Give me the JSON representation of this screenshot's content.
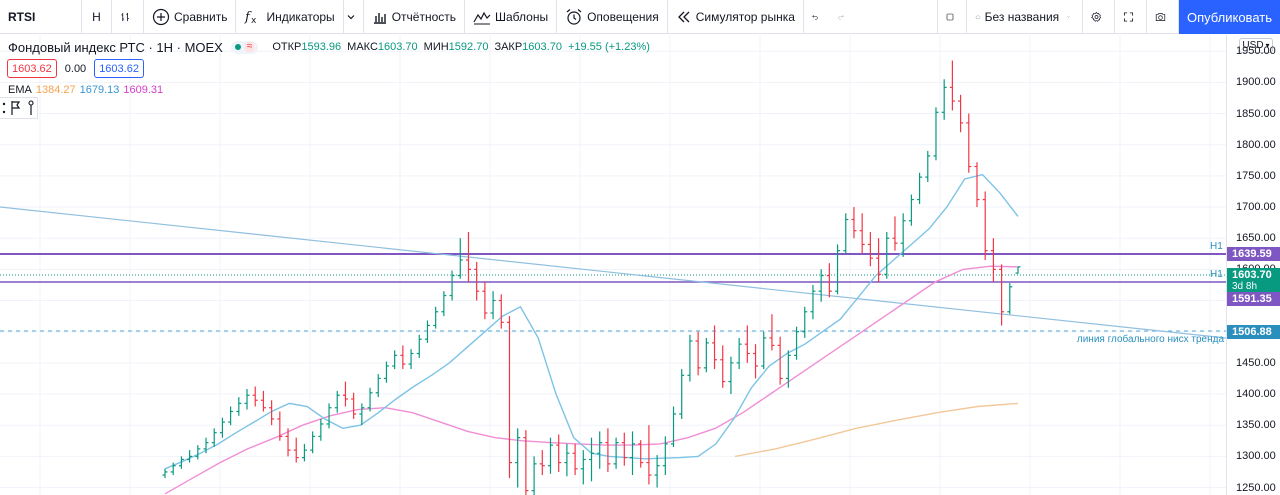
{
  "toolbar": {
    "symbol": "RTSI",
    "interval": "H",
    "compare": "Сравнить",
    "indicators": "Индикаторы",
    "reports": "Отчётность",
    "templates": "Шаблоны",
    "alerts": "Оповещения",
    "simulator": "Симулятор рынка",
    "layout_name": "Без названия",
    "publish": "Опубликовать"
  },
  "legend": {
    "title": "Фондовый индекс РТС · 1Н · MOEX",
    "open_label": "ОТКР",
    "open": "1593.96",
    "high_label": "МАКС",
    "high": "1603.70",
    "low_label": "МИН",
    "low": "1592.70",
    "close_label": "ЗАКР",
    "close": "1603.70",
    "change": "+19.55 (+1.23%)",
    "sell_price": "1603.62",
    "spread": "0.00",
    "buy_price": "1603.62",
    "ema_label": "EMA",
    "ema_values": [
      "1384.27",
      "1679.13",
      "1609.31"
    ]
  },
  "price_axis": {
    "currency": "USD",
    "ticks": [
      "1950.00",
      "1900.00",
      "1850.00",
      "1800.00",
      "1750.00",
      "1700.00",
      "1650.00",
      "1600.00",
      "1550.00",
      "1500.00",
      "1450.00",
      "1400.00",
      "1350.00",
      "1300.00",
      "1250.00"
    ],
    "range": [
      1238,
      1976
    ],
    "h1_upper": {
      "label": "H1",
      "value": "1639.59"
    },
    "h1_lower": {
      "label": "H1",
      "value": "1591.35"
    },
    "last_price": "1603.70",
    "countdown": "3d 8h",
    "dashed_level": "1506.88"
  },
  "annotations": {
    "trendline_label": "линия глобального нисх тренда"
  },
  "colors": {
    "up": "#089981",
    "down": "#f23645",
    "level_lines": "#7e57c2",
    "trendline": "#90bfe0",
    "accent": "#2962ff"
  },
  "chart_data": {
    "type": "ohlc",
    "bars": [
      [
        1270,
        1280,
        1265,
        1275
      ],
      [
        1275,
        1290,
        1270,
        1285
      ],
      [
        1285,
        1300,
        1280,
        1295
      ],
      [
        1295,
        1310,
        1290,
        1300
      ],
      [
        1300,
        1318,
        1295,
        1312
      ],
      [
        1312,
        1330,
        1305,
        1322
      ],
      [
        1322,
        1345,
        1315,
        1338
      ],
      [
        1338,
        1362,
        1330,
        1355
      ],
      [
        1355,
        1380,
        1350,
        1372
      ],
      [
        1372,
        1395,
        1365,
        1385
      ],
      [
        1385,
        1408,
        1375,
        1398
      ],
      [
        1398,
        1412,
        1380,
        1390
      ],
      [
        1390,
        1405,
        1372,
        1378
      ],
      [
        1378,
        1390,
        1350,
        1360
      ],
      [
        1360,
        1372,
        1325,
        1332
      ],
      [
        1332,
        1345,
        1300,
        1310
      ],
      [
        1310,
        1330,
        1290,
        1298
      ],
      [
        1298,
        1320,
        1292,
        1310
      ],
      [
        1310,
        1340,
        1305,
        1332
      ],
      [
        1332,
        1360,
        1325,
        1352
      ],
      [
        1352,
        1385,
        1345,
        1378
      ],
      [
        1378,
        1405,
        1370,
        1398
      ],
      [
        1398,
        1420,
        1380,
        1392
      ],
      [
        1392,
        1402,
        1360,
        1368
      ],
      [
        1368,
        1385,
        1350,
        1378
      ],
      [
        1378,
        1410,
        1372,
        1402
      ],
      [
        1402,
        1432,
        1395,
        1425
      ],
      [
        1425,
        1452,
        1418,
        1445
      ],
      [
        1445,
        1470,
        1440,
        1462
      ],
      [
        1462,
        1478,
        1440,
        1448
      ],
      [
        1448,
        1472,
        1440,
        1465
      ],
      [
        1465,
        1495,
        1458,
        1488
      ],
      [
        1488,
        1518,
        1482,
        1510
      ],
      [
        1510,
        1540,
        1505,
        1532
      ],
      [
        1532,
        1565,
        1525,
        1558
      ],
      [
        1558,
        1598,
        1550,
        1590
      ],
      [
        1590,
        1650,
        1585,
        1615
      ],
      [
        1615,
        1660,
        1580,
        1600
      ],
      [
        1600,
        1612,
        1550,
        1565
      ],
      [
        1565,
        1580,
        1520,
        1530
      ],
      [
        1530,
        1565,
        1520,
        1550
      ],
      [
        1550,
        1560,
        1505,
        1515
      ],
      [
        1515,
        1525,
        1265,
        1290
      ],
      [
        1290,
        1345,
        1250,
        1330
      ],
      [
        1330,
        1342,
        1230,
        1245
      ],
      [
        1245,
        1300,
        1235,
        1288
      ],
      [
        1288,
        1310,
        1270,
        1285
      ],
      [
        1285,
        1330,
        1272,
        1318
      ],
      [
        1318,
        1335,
        1275,
        1290
      ],
      [
        1290,
        1320,
        1268,
        1305
      ],
      [
        1305,
        1320,
        1270,
        1280
      ],
      [
        1280,
        1310,
        1255,
        1295
      ],
      [
        1295,
        1330,
        1260,
        1305
      ],
      [
        1305,
        1340,
        1280,
        1322
      ],
      [
        1322,
        1345,
        1275,
        1288
      ],
      [
        1288,
        1330,
        1280,
        1322
      ],
      [
        1322,
        1338,
        1285,
        1298
      ],
      [
        1298,
        1340,
        1270,
        1320
      ],
      [
        1320,
        1326,
        1282,
        1290
      ],
      [
        1290,
        1350,
        1255,
        1270
      ],
      [
        1270,
        1302,
        1250,
        1285
      ],
      [
        1285,
        1332,
        1270,
        1320
      ],
      [
        1320,
        1380,
        1315,
        1368
      ],
      [
        1368,
        1440,
        1360,
        1430
      ],
      [
        1430,
        1495,
        1420,
        1485
      ],
      [
        1485,
        1500,
        1430,
        1442
      ],
      [
        1442,
        1490,
        1435,
        1482
      ],
      [
        1482,
        1510,
        1440,
        1455
      ],
      [
        1455,
        1478,
        1410,
        1420
      ],
      [
        1420,
        1460,
        1400,
        1450
      ],
      [
        1450,
        1490,
        1440,
        1480
      ],
      [
        1480,
        1510,
        1450,
        1465
      ],
      [
        1465,
        1480,
        1425,
        1445
      ],
      [
        1445,
        1500,
        1440,
        1490
      ],
      [
        1490,
        1528,
        1470,
        1478
      ],
      [
        1478,
        1492,
        1415,
        1425
      ],
      [
        1425,
        1470,
        1410,
        1462
      ],
      [
        1462,
        1508,
        1455,
        1500
      ],
      [
        1500,
        1540,
        1490,
        1532
      ],
      [
        1532,
        1575,
        1520,
        1565
      ],
      [
        1565,
        1600,
        1548,
        1590
      ],
      [
        1590,
        1610,
        1555,
        1565
      ],
      [
        1565,
        1640,
        1560,
        1630
      ],
      [
        1630,
        1690,
        1625,
        1680
      ],
      [
        1680,
        1700,
        1650,
        1662
      ],
      [
        1662,
        1690,
        1625,
        1640
      ],
      [
        1640,
        1660,
        1605,
        1618
      ],
      [
        1618,
        1650,
        1580,
        1592
      ],
      [
        1592,
        1660,
        1585,
        1650
      ],
      [
        1650,
        1685,
        1630,
        1642
      ],
      [
        1642,
        1690,
        1620,
        1678
      ],
      [
        1678,
        1720,
        1670,
        1712
      ],
      [
        1712,
        1755,
        1705,
        1748
      ],
      [
        1748,
        1790,
        1740,
        1782
      ],
      [
        1782,
        1860,
        1775,
        1852
      ],
      [
        1852,
        1905,
        1840,
        1892
      ],
      [
        1892,
        1935,
        1855,
        1870
      ],
      [
        1870,
        1880,
        1820,
        1835
      ],
      [
        1835,
        1850,
        1755,
        1765
      ],
      [
        1765,
        1772,
        1700,
        1712
      ],
      [
        1712,
        1725,
        1615,
        1630
      ],
      [
        1630,
        1650,
        1580,
        1600
      ],
      [
        1600,
        1608,
        1510,
        1532
      ],
      [
        1532,
        1578,
        1528,
        1572
      ],
      [
        1594,
        1604,
        1593,
        1604
      ]
    ],
    "ema_fast": [
      1280,
      1292,
      1305,
      1320,
      1338,
      1355,
      1372,
      1385,
      1380,
      1360,
      1345,
      1350,
      1370,
      1392,
      1412,
      1430,
      1450,
      1475,
      1500,
      1525,
      1540,
      1490,
      1400,
      1330,
      1305,
      1300,
      1298,
      1296,
      1297,
      1298,
      1300,
      1320,
      1360,
      1410,
      1445,
      1465,
      1480,
      1500,
      1520,
      1555,
      1590,
      1615,
      1640,
      1665,
      1700,
      1745,
      1752,
      1722,
      1685
    ],
    "ema_slow": [
      1240,
      1265,
      1290,
      1312,
      1330,
      1350,
      1365,
      1375,
      1378,
      1370,
      1355,
      1340,
      1330,
      1325,
      1322,
      1320,
      1318,
      1318,
      1320,
      1330,
      1345,
      1370,
      1400,
      1430,
      1460,
      1490,
      1520,
      1550,
      1580,
      1600,
      1605,
      1604
    ],
    "ema_long": [
      1300,
      1312,
      1328,
      1345,
      1358,
      1370,
      1380,
      1385
    ]
  }
}
